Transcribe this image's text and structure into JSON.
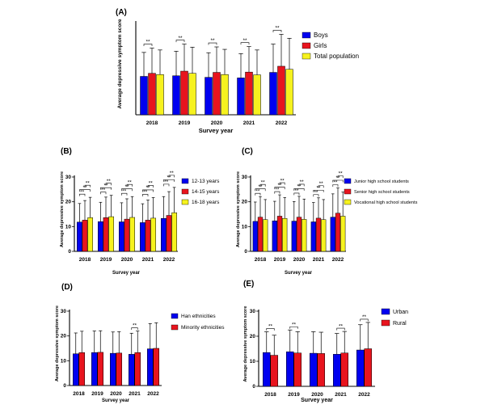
{
  "colors": {
    "blue": "#0000f0",
    "red": "#e8141e",
    "yellow": "#f6f21e",
    "axis": "#000000"
  },
  "chart_data": [
    {
      "id": "A",
      "panel_label": "(A)",
      "type": "bar",
      "xlabel": "Survey year",
      "ylabel": "Average depressive symptom score",
      "ylim": [
        0,
        30
      ],
      "yticks": [],
      "categories": [
        "2018",
        "2019",
        "2020",
        "2021",
        "2022"
      ],
      "series": [
        {
          "name": "Boys",
          "color": "blue",
          "values": [
            12.5,
            12.7,
            12.2,
            12.0,
            13.8
          ],
          "errors": [
            7.8,
            8.0,
            8.0,
            7.9,
            9.2
          ]
        },
        {
          "name": "Girls",
          "color": "red",
          "values": [
            13.5,
            14.2,
            13.8,
            13.9,
            15.8
          ],
          "errors": [
            8.2,
            8.8,
            8.3,
            8.3,
            10.4
          ]
        },
        {
          "name": "Total population",
          "color": "yellow",
          "values": [
            13.1,
            13.5,
            13.1,
            13.0,
            14.8
          ],
          "errors": [
            8.0,
            8.5,
            8.2,
            8.1,
            10.1
          ]
        }
      ],
      "significance": [
        {
          "category": 0,
          "from": 0,
          "to": 1,
          "label": "**"
        },
        {
          "category": 1,
          "from": 0,
          "to": 1,
          "label": "**"
        },
        {
          "category": 2,
          "from": 0,
          "to": 1,
          "label": "**"
        },
        {
          "category": 3,
          "from": 0,
          "to": 1,
          "label": "**"
        },
        {
          "category": 4,
          "from": 0,
          "to": 1,
          "label": "**"
        }
      ]
    },
    {
      "id": "B",
      "panel_label": "(B)",
      "type": "bar",
      "xlabel": "Survey year",
      "ylabel": "Average depressive symptom score",
      "ylim": [
        0,
        30
      ],
      "yticks": [
        0,
        10,
        20,
        30
      ],
      "categories": [
        "2018",
        "2019",
        "2020",
        "2021",
        "2022"
      ],
      "series": [
        {
          "name": "12-13 years",
          "color": "blue",
          "values": [
            11.8,
            12.0,
            11.9,
            11.6,
            13.3
          ],
          "errors": [
            7.5,
            7.8,
            7.7,
            7.6,
            8.8
          ]
        },
        {
          "name": "14-15 years",
          "color": "red",
          "values": [
            12.6,
            13.6,
            13.0,
            12.6,
            14.5
          ],
          "errors": [
            7.9,
            8.3,
            8.2,
            8.1,
            9.6
          ]
        },
        {
          "name": "16-18 years",
          "color": "yellow",
          "values": [
            13.6,
            14.0,
            13.7,
            13.4,
            15.6
          ],
          "errors": [
            8.2,
            8.6,
            8.4,
            8.3,
            10.2
          ]
        }
      ],
      "significance": [
        {
          "category": 0,
          "from": 0,
          "to": 1,
          "label": "**"
        },
        {
          "category": 0,
          "from": 0,
          "to": 2,
          "label": "**"
        },
        {
          "category": 0,
          "from": 1,
          "to": 2,
          "label": "**"
        },
        {
          "category": 1,
          "from": 0,
          "to": 1,
          "label": "**"
        },
        {
          "category": 1,
          "from": 0,
          "to": 2,
          "label": "**"
        },
        {
          "category": 1,
          "from": 1,
          "to": 2,
          "label": "**"
        },
        {
          "category": 2,
          "from": 0,
          "to": 1,
          "label": "**"
        },
        {
          "category": 2,
          "from": 0,
          "to": 2,
          "label": "**"
        },
        {
          "category": 2,
          "from": 1,
          "to": 2,
          "label": "**"
        },
        {
          "category": 3,
          "from": 0,
          "to": 1,
          "label": "**"
        },
        {
          "category": 3,
          "from": 0,
          "to": 2,
          "label": "**"
        },
        {
          "category": 3,
          "from": 1,
          "to": 2,
          "label": "**"
        },
        {
          "category": 4,
          "from": 0,
          "to": 1,
          "label": "**"
        },
        {
          "category": 4,
          "from": 0,
          "to": 2,
          "label": "**"
        },
        {
          "category": 4,
          "from": 1,
          "to": 2,
          "label": "**"
        }
      ]
    },
    {
      "id": "C",
      "panel_label": "(C)",
      "type": "bar",
      "xlabel": "Survey year",
      "ylabel": "Average depressive symptom score",
      "ylim": [
        0,
        30
      ],
      "yticks": [
        0,
        10,
        20,
        30
      ],
      "categories": [
        "2018",
        "2019",
        "2020",
        "2021",
        "2022"
      ],
      "series": [
        {
          "name": "Junior high school students",
          "color": "blue",
          "values": [
            12.1,
            12.3,
            12.2,
            11.9,
            13.8
          ],
          "errors": [
            7.8,
            7.9,
            7.9,
            7.8,
            9.4
          ]
        },
        {
          "name": "Senior high school students",
          "color": "red",
          "values": [
            13.8,
            14.2,
            13.8,
            13.4,
            15.4
          ],
          "errors": [
            8.3,
            8.6,
            8.4,
            8.2,
            10.2
          ]
        },
        {
          "name": "Vocational high school students",
          "color": "yellow",
          "values": [
            12.8,
            13.3,
            12.9,
            12.8,
            14.2
          ],
          "errors": [
            8.1,
            8.4,
            8.2,
            8.1,
            9.7
          ]
        }
      ],
      "significance": [
        {
          "category": 0,
          "from": 0,
          "to": 1,
          "label": "**"
        },
        {
          "category": 0,
          "from": 0,
          "to": 2,
          "label": "**"
        },
        {
          "category": 0,
          "from": 1,
          "to": 2,
          "label": "**"
        },
        {
          "category": 1,
          "from": 0,
          "to": 1,
          "label": "**"
        },
        {
          "category": 1,
          "from": 0,
          "to": 2,
          "label": "**"
        },
        {
          "category": 1,
          "from": 1,
          "to": 2,
          "label": "**"
        },
        {
          "category": 2,
          "from": 0,
          "to": 1,
          "label": "**"
        },
        {
          "category": 2,
          "from": 0,
          "to": 2,
          "label": "**"
        },
        {
          "category": 2,
          "from": 1,
          "to": 2,
          "label": "**"
        },
        {
          "category": 3,
          "from": 0,
          "to": 1,
          "label": "**"
        },
        {
          "category": 3,
          "from": 0,
          "to": 2,
          "label": "**"
        },
        {
          "category": 3,
          "from": 1,
          "to": 2,
          "label": "**"
        },
        {
          "category": 4,
          "from": 0,
          "to": 1,
          "label": "**"
        },
        {
          "category": 4,
          "from": 0,
          "to": 2,
          "label": "**"
        },
        {
          "category": 4,
          "from": 1,
          "to": 2,
          "label": "**"
        }
      ]
    },
    {
      "id": "D",
      "panel_label": "(D)",
      "type": "bar",
      "xlabel": "Survey year",
      "ylabel": "Average depressive symptom score",
      "ylim": [
        0,
        30
      ],
      "yticks": [
        0,
        10,
        20,
        30
      ],
      "categories": [
        "2018",
        "2019",
        "2020",
        "2021",
        "2022"
      ],
      "series": [
        {
          "name": "Han ethnicities",
          "color": "blue",
          "values": [
            12.8,
            13.3,
            13.0,
            12.6,
            14.8
          ],
          "errors": [
            8.4,
            8.7,
            8.6,
            8.5,
            10.2
          ]
        },
        {
          "name": "Minority ethnicities",
          "color": "red",
          "values": [
            13.3,
            13.4,
            13.1,
            13.3,
            15.0
          ],
          "errors": [
            8.6,
            8.7,
            8.6,
            8.7,
            10.3
          ]
        }
      ],
      "significance": [
        {
          "category": 3,
          "from": 0,
          "to": 1,
          "label": "**"
        }
      ]
    },
    {
      "id": "E",
      "panel_label": "(E)",
      "type": "bar",
      "xlabel": "Survey year",
      "ylabel": "Average depressive symptom score",
      "ylim": [
        0,
        30
      ],
      "yticks": [
        0,
        10,
        20,
        30
      ],
      "categories": [
        "2018",
        "2019",
        "2020",
        "2021",
        "2022"
      ],
      "series": [
        {
          "name": "Urban",
          "color": "blue",
          "values": [
            13.5,
            13.8,
            13.2,
            12.8,
            14.5
          ],
          "errors": [
            8.3,
            8.7,
            8.6,
            8.3,
            10.1
          ]
        },
        {
          "name": "Rural",
          "color": "red",
          "values": [
            12.4,
            13.3,
            13.1,
            13.3,
            15.0
          ],
          "errors": [
            8.0,
            8.5,
            8.5,
            8.6,
            10.5
          ]
        }
      ],
      "significance": [
        {
          "category": 0,
          "from": 0,
          "to": 1,
          "label": "**"
        },
        {
          "category": 1,
          "from": 0,
          "to": 1,
          "label": "**"
        },
        {
          "category": 3,
          "from": 0,
          "to": 1,
          "label": "**"
        },
        {
          "category": 4,
          "from": 0,
          "to": 1,
          "label": "**"
        }
      ]
    }
  ]
}
